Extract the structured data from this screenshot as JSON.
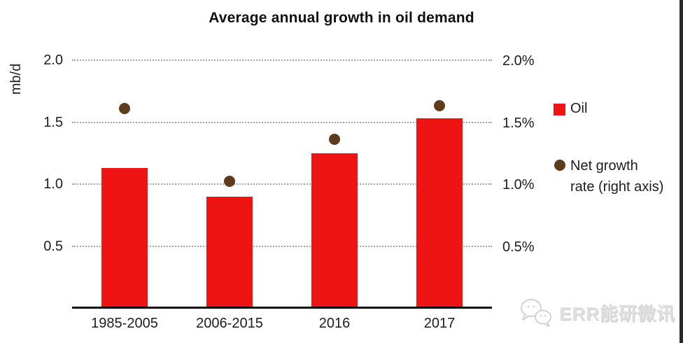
{
  "chart_data": {
    "type": "bar",
    "title": "Average annual growth in oil demand",
    "categories": [
      "1985-2005",
      "2006-2015",
      "2016",
      "2017"
    ],
    "series": [
      {
        "name": "Oil",
        "kind": "bar",
        "axis": "left",
        "unit": "mb/d",
        "values": [
          1.13,
          0.9,
          1.25,
          1.53
        ]
      },
      {
        "name": "Net growth rate (right axis)",
        "kind": "scatter",
        "axis": "right",
        "unit": "%",
        "values": [
          1.61,
          1.02,
          1.36,
          1.63
        ]
      }
    ],
    "left_axis": {
      "label": "mb/d",
      "range": [
        0,
        2.0
      ],
      "ticks": [
        {
          "value": 2.0,
          "label": "2.0"
        },
        {
          "value": 1.5,
          "label": "1.5"
        },
        {
          "value": 1.0,
          "label": "1.0"
        },
        {
          "value": 0.5,
          "label": "0.5"
        }
      ]
    },
    "right_axis": {
      "range": [
        0,
        2.0
      ],
      "ticks": [
        {
          "value": 2.0,
          "label": "2.0%"
        },
        {
          "value": 1.5,
          "label": "1.5%"
        },
        {
          "value": 1.0,
          "label": "1.0%"
        },
        {
          "value": 0.5,
          "label": "0.5%"
        }
      ]
    },
    "grid": {
      "axis": "y",
      "style": "dotted"
    },
    "legend_position": "right"
  },
  "colors": {
    "oil_red": "#ee1414",
    "net_growth_brown": "#5e3c1b",
    "axis_black": "#111111",
    "grid_gray": "#a3a3a3"
  },
  "legend": {
    "items": [
      {
        "label": "Oil",
        "swatch": "square",
        "color": "#ee1414"
      },
      {
        "label": "Net growth rate (right axis)",
        "label_lines": [
          "Net growth",
          "rate (right axis)"
        ],
        "swatch": "dot",
        "color": "#5e3c1b"
      }
    ]
  },
  "watermark": {
    "text": "ERR能研微讯",
    "icon": "chat-bubbles"
  }
}
